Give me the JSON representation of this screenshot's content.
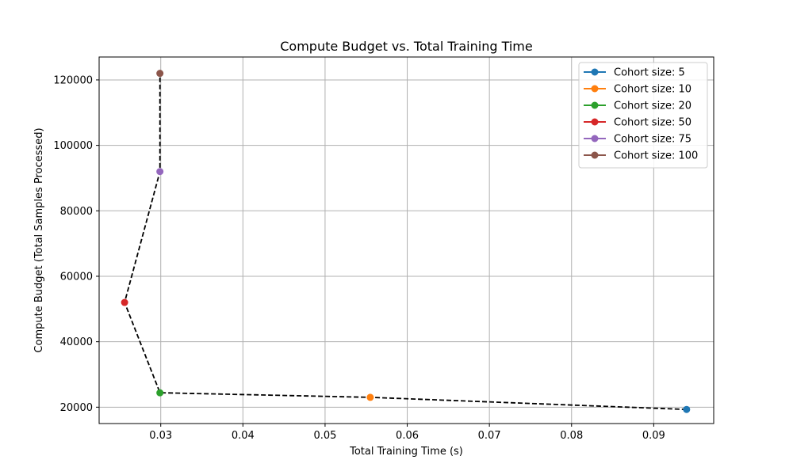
{
  "chart_data": {
    "type": "scatter",
    "title": "Compute Budget vs. Total Training Time",
    "xlabel": "Total Training Time (s)",
    "ylabel": "Compute Budget (Total Samples Processed)",
    "xlim": [
      0.0225,
      0.0973
    ],
    "ylim": [
      15000,
      127000
    ],
    "x_ticks": [
      0.03,
      0.04,
      0.05,
      0.06,
      0.07,
      0.08,
      0.09
    ],
    "x_tick_labels": [
      "0.03",
      "0.04",
      "0.05",
      "0.06",
      "0.07",
      "0.08",
      "0.09"
    ],
    "y_ticks": [
      20000,
      40000,
      60000,
      80000,
      100000,
      120000
    ],
    "y_tick_labels": [
      "20000",
      "40000",
      "60000",
      "80000",
      "100000",
      "120000"
    ],
    "grid": true,
    "legend_position": "top-right",
    "series": [
      {
        "name": "Cohort size: 5",
        "color": "#1f77b4",
        "x": 0.094,
        "y": 19300
      },
      {
        "name": "Cohort size: 10",
        "color": "#ff7f0e",
        "x": 0.0555,
        "y": 23000
      },
      {
        "name": "Cohort size: 20",
        "color": "#2ca02c",
        "x": 0.0299,
        "y": 24400
      },
      {
        "name": "Cohort size: 50",
        "color": "#d62728",
        "x": 0.0256,
        "y": 52000
      },
      {
        "name": "Cohort size: 75",
        "color": "#9467bd",
        "x": 0.0299,
        "y": 92000
      },
      {
        "name": "Cohort size: 100",
        "color": "#8c564b",
        "x": 0.0299,
        "y": 122000
      }
    ],
    "connector": {
      "style": "dashed",
      "color": "#000000"
    }
  }
}
